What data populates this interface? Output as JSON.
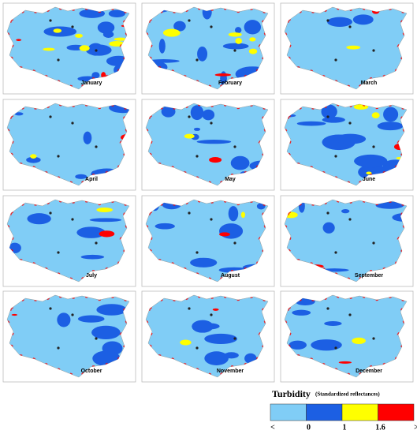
{
  "panels": [
    {
      "label": "January"
    },
    {
      "label": "February"
    },
    {
      "label": "March"
    },
    {
      "label": "April"
    },
    {
      "label": "May"
    },
    {
      "label": "June"
    },
    {
      "label": "July"
    },
    {
      "label": "August"
    },
    {
      "label": "September"
    },
    {
      "label": "October"
    },
    {
      "label": "November"
    },
    {
      "label": "December"
    }
  ],
  "legend": {
    "title": "Turbidity",
    "subtitle": "(Standardized reflectances)",
    "classes": [
      {
        "color": "#80cdf6"
      },
      {
        "color": "#1c5fe3"
      },
      {
        "color": "#ffff00"
      },
      {
        "color": "#ff0000"
      }
    ],
    "labels": [
      "<",
      "0",
      "1",
      "1.6",
      ">"
    ]
  }
}
